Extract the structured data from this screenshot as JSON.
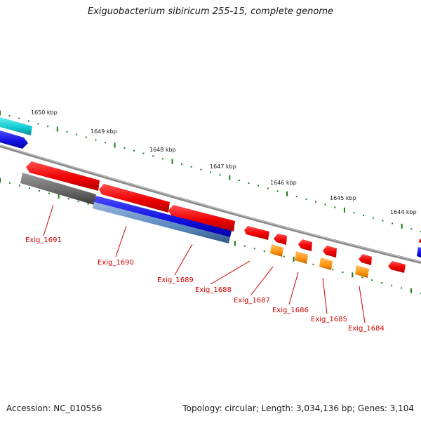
{
  "title": "Exiguobacterium sibiricum 255-15, complete genome",
  "accession": "Accession: NC_010556",
  "topology": "Topology: circular; Length: 3,034,136 bp; Genes: 3,104",
  "kbp_labels": [
    "1650 kbp",
    "1649 kbp",
    "1648 kbp",
    "1647 kbp",
    "1646 kbp",
    "1645 kbp",
    "1644 kbp"
  ],
  "gene_labels": [
    "Exig_1691",
    "Exig_1690",
    "Exig_1689",
    "Exig_1688",
    "Exig_1687",
    "Exig_1686",
    "Exig_1685",
    "Exig_1684"
  ],
  "colors": {
    "backbone": "#8a8a8a",
    "gene_red": "#ff1010",
    "gene_blue": "#1010e8",
    "gene_cyan": "#10c8d0",
    "gene_gray": "#6a6a6a",
    "gene_steel": "#5a88c0",
    "gene_orange": "#ff9410",
    "ticks": "#1a7a1a",
    "label": "#cc0000"
  }
}
